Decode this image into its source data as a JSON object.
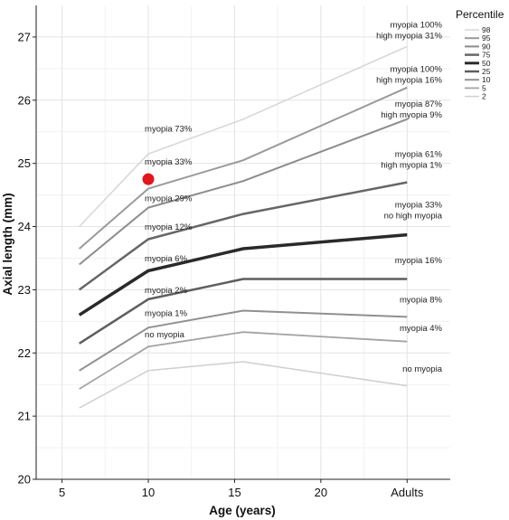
{
  "chart_data": {
    "type": "line",
    "xlabel": "Age (years)",
    "ylabel": "Axial length (mm)",
    "xlim": [
      3.5,
      27.5
    ],
    "ylim": [
      20,
      27.5
    ],
    "x_ticks": [
      {
        "value": 5,
        "label": "5"
      },
      {
        "value": 10,
        "label": "10"
      },
      {
        "value": 15,
        "label": "15"
      },
      {
        "value": 20,
        "label": "20"
      },
      {
        "value": 25,
        "label": "Adults"
      }
    ],
    "y_ticks": [
      20,
      21,
      22,
      23,
      24,
      25,
      26,
      27
    ],
    "grid": true,
    "legend": {
      "title": "Percentile",
      "position": "top-right"
    },
    "x": [
      6,
      10,
      15.5,
      25
    ],
    "series": [
      {
        "name": "98",
        "color": "#d6d6d6",
        "width": 1.5,
        "values": [
          24.0,
          25.15,
          25.7,
          26.85
        ]
      },
      {
        "name": "95",
        "color": "#9a9a9a",
        "width": 2,
        "values": [
          23.65,
          24.6,
          25.05,
          26.2
        ]
      },
      {
        "name": "90",
        "color": "#8c8c8c",
        "width": 2,
        "values": [
          23.4,
          24.3,
          24.72,
          25.7
        ]
      },
      {
        "name": "75",
        "color": "#666666",
        "width": 2.5,
        "values": [
          23.0,
          23.8,
          24.2,
          24.7
        ]
      },
      {
        "name": "50",
        "color": "#2a2a2a",
        "width": 3.5,
        "values": [
          22.6,
          23.3,
          23.65,
          23.87
        ]
      },
      {
        "name": "25",
        "color": "#5e5e5e",
        "width": 2.5,
        "values": [
          22.15,
          22.85,
          23.17,
          23.17
        ]
      },
      {
        "name": "10",
        "color": "#909090",
        "width": 2,
        "values": [
          21.72,
          22.4,
          22.67,
          22.57
        ]
      },
      {
        "name": "5",
        "color": "#a4a4a4",
        "width": 1.8,
        "values": [
          21.43,
          22.1,
          22.33,
          22.18
        ]
      },
      {
        "name": "2",
        "color": "#cfcfcf",
        "width": 1.5,
        "values": [
          21.13,
          21.72,
          21.86,
          21.48
        ]
      }
    ],
    "highlight_point": {
      "x": 10,
      "y": 24.75,
      "color": "#e3161c"
    },
    "annotations_age10": [
      {
        "text": "myopia 73%",
        "y": 25.5
      },
      {
        "text": "myopia 33%",
        "y": 24.98
      },
      {
        "text": "myopia 29%",
        "y": 24.4
      },
      {
        "text": "myopia 12%",
        "y": 23.95
      },
      {
        "text": "myopia 6%",
        "y": 23.45
      },
      {
        "text": "myopia 2%",
        "y": 22.95
      },
      {
        "text": "myopia 1%",
        "y": 22.58
      },
      {
        "text": "no myopia",
        "y": 22.25
      }
    ],
    "annotations_adults": [
      {
        "lines": [
          "myopia 100%",
          "high myopia 31%"
        ],
        "y": 27.15
      },
      {
        "lines": [
          "myopia 100%",
          "high myopia 16%"
        ],
        "y": 26.45
      },
      {
        "lines": [
          "myopia 87%",
          "high myopia 9%"
        ],
        "y": 25.9
      },
      {
        "lines": [
          "myopia 61%",
          "high myopia 1%"
        ],
        "y": 25.1
      },
      {
        "lines": [
          "myopia 33%",
          "no high myopia"
        ],
        "y": 24.3
      },
      {
        "lines": [
          "myopia 16%"
        ],
        "y": 23.42
      },
      {
        "lines": [
          "myopia 8%"
        ],
        "y": 22.8
      },
      {
        "lines": [
          "myopia 4%"
        ],
        "y": 22.35
      },
      {
        "lines": [
          "no myopia"
        ],
        "y": 21.7
      }
    ]
  }
}
